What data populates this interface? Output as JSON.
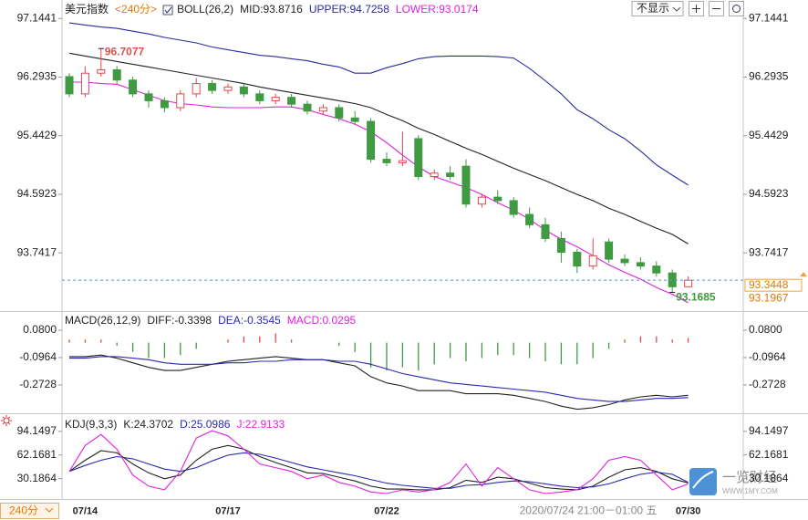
{
  "toolbar": {
    "display_option": "不显示"
  },
  "period_button": "240分",
  "watermark": {
    "brand": "一览财经",
    "url": "WWW.1MY.COM"
  },
  "chart_data": [
    {
      "type": "candlestick",
      "title": "美元指数",
      "period": "<240分>",
      "indicator": "BOLL(26,2)",
      "categories": [
        null,
        "07/14",
        null,
        null,
        null,
        null,
        null,
        null,
        null,
        null,
        "07/17",
        null,
        null,
        null,
        null,
        null,
        null,
        null,
        null,
        null,
        "07/22",
        null,
        null,
        null,
        null,
        null,
        null,
        null,
        null,
        null,
        null,
        null,
        null,
        null,
        null,
        null,
        null,
        null,
        null,
        "07/30"
      ],
      "cursor_label": "2020/07/24 21:00－01:00 五",
      "open": [
        96.3,
        96.05,
        96.35,
        96.4,
        96.25,
        96.05,
        95.95,
        95.85,
        96.05,
        96.2,
        96.1,
        96.15,
        96.05,
        95.95,
        96.0,
        95.9,
        95.8,
        95.85,
        95.7,
        95.65,
        95.1,
        95.05,
        95.4,
        94.85,
        94.9,
        95.0,
        94.45,
        94.55,
        94.5,
        94.3,
        94.15,
        93.95,
        93.75,
        93.55,
        93.9,
        93.65,
        93.6,
        93.55,
        93.45,
        93.25
      ],
      "high": [
        96.35,
        96.45,
        96.7077,
        96.45,
        96.3,
        96.1,
        96.0,
        96.1,
        96.28,
        96.25,
        96.2,
        96.2,
        96.1,
        96.05,
        96.05,
        95.95,
        95.9,
        95.9,
        95.8,
        95.7,
        95.2,
        95.5,
        95.45,
        94.95,
        95.0,
        95.1,
        94.6,
        94.65,
        94.55,
        94.4,
        94.25,
        94.05,
        93.8,
        93.95,
        93.95,
        93.72,
        93.68,
        93.62,
        93.5,
        93.4
      ],
      "low": [
        96.0,
        96.0,
        96.3,
        96.2,
        96.0,
        95.85,
        95.78,
        95.8,
        96.0,
        96.05,
        96.05,
        96.0,
        95.9,
        95.9,
        95.85,
        95.75,
        95.75,
        95.65,
        95.6,
        95.05,
        95.0,
        95.0,
        94.8,
        94.8,
        94.8,
        94.4,
        94.4,
        94.45,
        94.25,
        94.1,
        93.9,
        93.6,
        93.45,
        93.5,
        93.6,
        93.55,
        93.5,
        93.4,
        93.1685,
        93.25
      ],
      "close": [
        96.05,
        96.35,
        96.4,
        96.25,
        96.05,
        95.95,
        95.85,
        96.05,
        96.2,
        96.1,
        96.15,
        96.05,
        95.95,
        96.0,
        95.9,
        95.8,
        95.85,
        95.7,
        95.65,
        95.1,
        95.05,
        95.08,
        94.85,
        94.9,
        94.85,
        94.45,
        94.55,
        94.5,
        94.3,
        94.15,
        93.95,
        93.75,
        93.55,
        93.7,
        93.65,
        93.6,
        93.55,
        93.45,
        93.25,
        93.3448
      ],
      "up_color": "#e5484b",
      "down_color": "#3f9a41",
      "series": [
        {
          "name": "MID:93.8716",
          "color": "#222222",
          "values": [
            96.64,
            96.6,
            96.56,
            96.52,
            96.48,
            96.44,
            96.4,
            96.36,
            96.32,
            96.28,
            96.24,
            96.2,
            96.15,
            96.11,
            96.07,
            96.03,
            95.99,
            95.95,
            95.91,
            95.85,
            95.75,
            95.66,
            95.55,
            95.46,
            95.36,
            95.26,
            95.17,
            95.07,
            94.97,
            94.88,
            94.79,
            94.69,
            94.59,
            94.5,
            94.39,
            94.3,
            94.2,
            94.1,
            94.01,
            93.8716
          ]
        },
        {
          "name": "UPPER:94.7258",
          "color": "#2a2aa0",
          "values": [
            97.08,
            97.05,
            97.02,
            97.0,
            96.96,
            96.92,
            96.87,
            96.83,
            96.79,
            96.73,
            96.69,
            96.65,
            96.61,
            96.59,
            96.56,
            96.53,
            96.48,
            96.44,
            96.35,
            96.35,
            96.43,
            96.49,
            96.56,
            96.59,
            96.6,
            96.6,
            96.6,
            96.59,
            96.57,
            96.42,
            96.24,
            96.05,
            95.82,
            95.69,
            95.53,
            95.4,
            95.22,
            95.02,
            94.87,
            94.7258
          ]
        },
        {
          "name": "LOWER:93.0174",
          "color": "#e020e0",
          "values": [
            96.22,
            96.22,
            96.2,
            96.19,
            96.11,
            96.03,
            95.95,
            95.91,
            95.89,
            95.86,
            95.85,
            95.85,
            95.85,
            95.86,
            95.86,
            95.82,
            95.75,
            95.69,
            95.61,
            95.5,
            95.34,
            95.16,
            94.99,
            94.85,
            94.77,
            94.69,
            94.59,
            94.47,
            94.36,
            94.23,
            94.07,
            93.94,
            93.83,
            93.7,
            93.57,
            93.46,
            93.36,
            93.24,
            93.14,
            93.0174
          ]
        }
      ],
      "last_price": 93.3448,
      "cursor_price": 93.1967,
      "ylim": [
        92.91,
        97.28
      ],
      "yticks": [
        97.1441,
        96.2935,
        95.4429,
        94.5923,
        93.7417
      ]
    },
    {
      "type": "macd",
      "title": "MACD(26,12,9)",
      "series": [
        {
          "name": "DIFF:-0.3398",
          "color": "#222222",
          "values": [
            -0.09,
            -0.09,
            -0.08,
            -0.1,
            -0.13,
            -0.16,
            -0.18,
            -0.18,
            -0.16,
            -0.14,
            -0.12,
            -0.11,
            -0.1,
            -0.09,
            -0.1,
            -0.11,
            -0.11,
            -0.13,
            -0.15,
            -0.22,
            -0.26,
            -0.28,
            -0.31,
            -0.31,
            -0.31,
            -0.33,
            -0.33,
            -0.33,
            -0.34,
            -0.36,
            -0.38,
            -0.41,
            -0.43,
            -0.42,
            -0.4,
            -0.37,
            -0.35,
            -0.34,
            -0.35,
            -0.3398
          ]
        },
        {
          "name": "DEA:-0.3545",
          "color": "#2a2ab0",
          "values": [
            -0.1,
            -0.1,
            -0.09,
            -0.09,
            -0.1,
            -0.11,
            -0.13,
            -0.14,
            -0.14,
            -0.14,
            -0.13,
            -0.13,
            -0.12,
            -0.12,
            -0.11,
            -0.11,
            -0.11,
            -0.12,
            -0.12,
            -0.14,
            -0.17,
            -0.2,
            -0.22,
            -0.24,
            -0.26,
            -0.27,
            -0.28,
            -0.29,
            -0.3,
            -0.31,
            -0.32,
            -0.34,
            -0.36,
            -0.37,
            -0.38,
            -0.38,
            -0.37,
            -0.36,
            -0.36,
            -0.3545
          ]
        },
        {
          "name": "MACD:0.0295",
          "color": "#e020e0",
          "style": "histogram",
          "up_color": "#e5484b",
          "down_color": "#3f9a41",
          "values": [
            0.02,
            0.02,
            0.02,
            -0.02,
            -0.06,
            -0.1,
            -0.1,
            -0.08,
            -0.04,
            0,
            0.02,
            0.04,
            0.04,
            0.06,
            0.02,
            0,
            0,
            -0.02,
            -0.06,
            -0.16,
            -0.18,
            -0.16,
            -0.18,
            -0.14,
            -0.1,
            -0.12,
            -0.1,
            -0.08,
            -0.08,
            -0.1,
            -0.12,
            -0.14,
            -0.14,
            -0.1,
            -0.04,
            0.02,
            0.04,
            0.04,
            0.02,
            0.0295
          ]
        }
      ],
      "ylim": [
        -0.45,
        0.18
      ],
      "yticks": [
        {
          "value": 0.08,
          "label": "0.0800"
        },
        -0.0964,
        -0.2728
      ]
    },
    {
      "type": "line",
      "title": "KDJ(9,3,3)",
      "series": [
        {
          "name": "K:24.3702",
          "color": "#222222",
          "values": [
            40,
            55,
            68,
            65,
            50,
            38,
            30,
            35,
            55,
            70,
            75,
            70,
            60,
            52,
            45,
            38,
            37,
            32,
            27,
            20,
            16,
            16,
            15,
            15,
            18,
            28,
            25,
            32,
            30,
            24,
            18,
            16,
            15,
            20,
            32,
            42,
            45,
            40,
            30,
            24.3702
          ]
        },
        {
          "name": "D:25.0986",
          "color": "#2a2ab0",
          "values": [
            40,
            48,
            55,
            60,
            57,
            50,
            43,
            40,
            45,
            54,
            62,
            65,
            63,
            58,
            52,
            46,
            42,
            38,
            34,
            29,
            24,
            21,
            19,
            17,
            17,
            21,
            22,
            25,
            27,
            26,
            23,
            20,
            18,
            19,
            23,
            30,
            36,
            39,
            36,
            25.0986
          ]
        },
        {
          "name": "J:22.9133",
          "color": "#e020e0",
          "values": [
            40,
            75,
            90,
            70,
            35,
            20,
            15,
            40,
            85,
            95,
            88,
            70,
            50,
            45,
            40,
            30,
            35,
            25,
            20,
            12,
            10,
            15,
            12,
            15,
            25,
            50,
            20,
            45,
            30,
            15,
            10,
            12,
            15,
            30,
            55,
            60,
            55,
            35,
            15,
            22.9133
          ]
        }
      ],
      "ylim": [
        5,
        110
      ],
      "yticks": [
        94.1497,
        62.1681,
        30.1864
      ]
    }
  ]
}
